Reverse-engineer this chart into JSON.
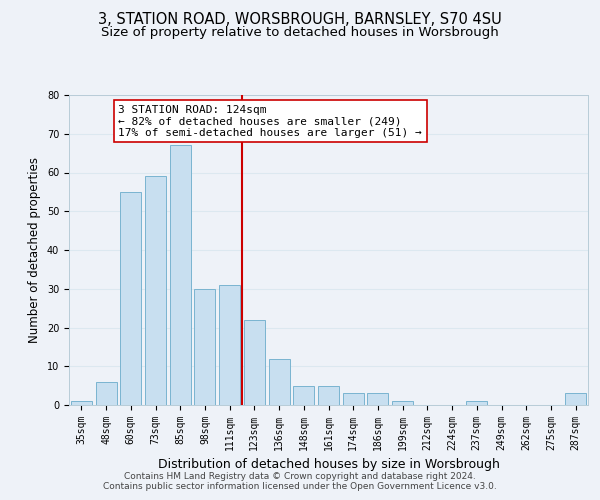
{
  "title": "3, STATION ROAD, WORSBROUGH, BARNSLEY, S70 4SU",
  "subtitle": "Size of property relative to detached houses in Worsbrough",
  "xlabel": "Distribution of detached houses by size in Worsbrough",
  "ylabel": "Number of detached properties",
  "footer_line1": "Contains HM Land Registry data © Crown copyright and database right 2024.",
  "footer_line2": "Contains public sector information licensed under the Open Government Licence v3.0.",
  "bar_labels": [
    "35sqm",
    "48sqm",
    "60sqm",
    "73sqm",
    "85sqm",
    "98sqm",
    "111sqm",
    "123sqm",
    "136sqm",
    "148sqm",
    "161sqm",
    "174sqm",
    "186sqm",
    "199sqm",
    "212sqm",
    "224sqm",
    "237sqm",
    "249sqm",
    "262sqm",
    "275sqm",
    "287sqm"
  ],
  "bar_values": [
    1,
    6,
    55,
    59,
    67,
    30,
    31,
    22,
    12,
    5,
    5,
    3,
    3,
    1,
    0,
    0,
    1,
    0,
    0,
    0,
    3
  ],
  "bar_color": "#c8dff0",
  "bar_edge_color": "#7ab4d0",
  "vline_color": "#cc0000",
  "annotation_text": "3 STATION ROAD: 124sqm\n← 82% of detached houses are smaller (249)\n17% of semi-detached houses are larger (51) →",
  "annotation_box_edge_color": "#cc0000",
  "annotation_box_face_color": "#ffffff",
  "ylim": [
    0,
    80
  ],
  "yticks": [
    0,
    10,
    20,
    30,
    40,
    50,
    60,
    70,
    80
  ],
  "grid_color": "#dce8f0",
  "background_color": "#eef2f8",
  "title_fontsize": 10.5,
  "subtitle_fontsize": 9.5,
  "xlabel_fontsize": 9,
  "ylabel_fontsize": 8.5,
  "tick_fontsize": 7,
  "annotation_fontsize": 8,
  "footer_fontsize": 6.5
}
